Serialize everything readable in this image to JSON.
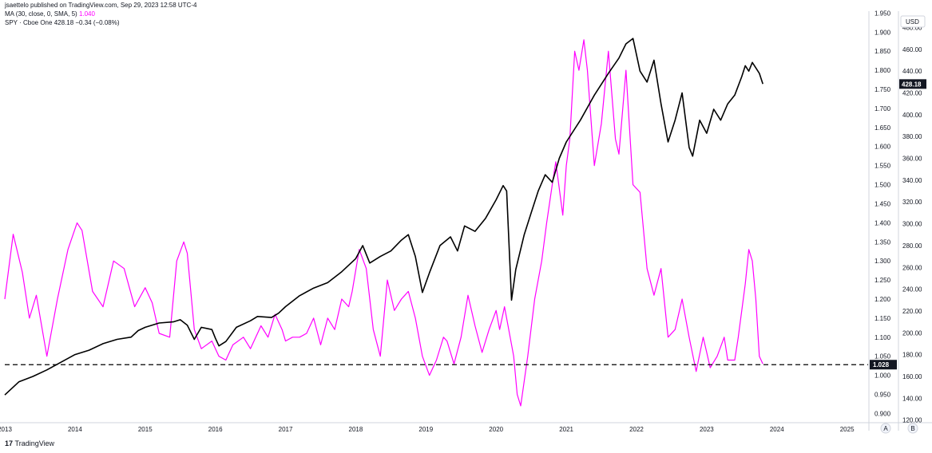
{
  "publisher_line": "jsaettelo published on TradingView.com, Sep 29, 2023 12:58 UTC-4",
  "legend": [
    {
      "label": "MA (30, close, 0, SMA, 5)",
      "value": "1.040",
      "color": "#ff00ff"
    },
    {
      "label": "SPY · Cboe One",
      "value": "428.18  −0.34 (−0.08%)",
      "color": "#131722"
    }
  ],
  "brand": {
    "mark": "17",
    "name": "TradingView",
    "icon": "tradingview-logo-icon"
  },
  "axis_buttons": {
    "auto": "A",
    "log": "B"
  },
  "colors": {
    "ratio_line": "#ff00ff",
    "price_line": "#000000",
    "grid": "#e8e8e8",
    "text": "#131722",
    "label_bg": "#131722"
  },
  "chart_data": {
    "type": "line",
    "x": {
      "labels": [
        "2013",
        "2014",
        "2015",
        "2016",
        "2017",
        "2018",
        "2019",
        "2020",
        "2021",
        "2022",
        "2023",
        "2024",
        "2025"
      ],
      "range": [
        2013.0,
        2025.3
      ]
    },
    "y_left_scale": {
      "name": "MA ratio",
      "ticks": [
        "1.950",
        "1.900",
        "1.850",
        "1.800",
        "1.750",
        "1.700",
        "1.650",
        "1.600",
        "1.550",
        "1.500",
        "1.450",
        "1.400",
        "1.350",
        "1.300",
        "1.250",
        "1.200",
        "1.150",
        "1.100",
        "1.050",
        "1.000",
        "0.950",
        "0.900"
      ],
      "range": [
        0.88,
        1.955
      ]
    },
    "y_right_scale": {
      "name": "USD",
      "unit": "USD",
      "ticks": [
        "480.00",
        "460.00",
        "440.00",
        "420.00",
        "400.00",
        "380.00",
        "360.00",
        "340.00",
        "320.00",
        "300.00",
        "280.00",
        "260.00",
        "240.00",
        "220.00",
        "200.00",
        "180.00",
        "160.00",
        "140.00",
        "120.00"
      ],
      "range": [
        119,
        495
      ]
    },
    "reference_line": {
      "value": 1.028,
      "label": "1.028",
      "style": "dashed"
    },
    "last_price_label": {
      "value": 428.18,
      "label": "428.18"
    },
    "series": [
      {
        "name": "MA (30, close, 0, SMA, 5)",
        "color": "#ff00ff",
        "scale": "left",
        "points": [
          [
            2013.0,
            1.2
          ],
          [
            2013.12,
            1.37
          ],
          [
            2013.25,
            1.27
          ],
          [
            2013.35,
            1.15
          ],
          [
            2013.45,
            1.21
          ],
          [
            2013.6,
            1.05
          ],
          [
            2013.75,
            1.2
          ],
          [
            2013.9,
            1.33
          ],
          [
            2014.03,
            1.4
          ],
          [
            2014.1,
            1.38
          ],
          [
            2014.25,
            1.22
          ],
          [
            2014.4,
            1.18
          ],
          [
            2014.55,
            1.3
          ],
          [
            2014.7,
            1.28
          ],
          [
            2014.85,
            1.18
          ],
          [
            2015.0,
            1.23
          ],
          [
            2015.1,
            1.19
          ],
          [
            2015.2,
            1.11
          ],
          [
            2015.35,
            1.1
          ],
          [
            2015.45,
            1.3
          ],
          [
            2015.55,
            1.35
          ],
          [
            2015.6,
            1.32
          ],
          [
            2015.7,
            1.12
          ],
          [
            2015.8,
            1.07
          ],
          [
            2015.95,
            1.09
          ],
          [
            2016.05,
            1.05
          ],
          [
            2016.15,
            1.04
          ],
          [
            2016.25,
            1.08
          ],
          [
            2016.4,
            1.1
          ],
          [
            2016.5,
            1.07
          ],
          [
            2016.65,
            1.13
          ],
          [
            2016.75,
            1.1
          ],
          [
            2016.85,
            1.16
          ],
          [
            2016.95,
            1.12
          ],
          [
            2017.0,
            1.09
          ],
          [
            2017.1,
            1.1
          ],
          [
            2017.2,
            1.1
          ],
          [
            2017.3,
            1.11
          ],
          [
            2017.4,
            1.15
          ],
          [
            2017.5,
            1.08
          ],
          [
            2017.6,
            1.15
          ],
          [
            2017.7,
            1.12
          ],
          [
            2017.8,
            1.2
          ],
          [
            2017.9,
            1.18
          ],
          [
            2017.95,
            1.22
          ],
          [
            2018.05,
            1.33
          ],
          [
            2018.15,
            1.28
          ],
          [
            2018.25,
            1.12
          ],
          [
            2018.35,
            1.05
          ],
          [
            2018.45,
            1.25
          ],
          [
            2018.55,
            1.17
          ],
          [
            2018.65,
            1.2
          ],
          [
            2018.75,
            1.22
          ],
          [
            2018.85,
            1.15
          ],
          [
            2018.95,
            1.05
          ],
          [
            2019.05,
            1.0
          ],
          [
            2019.15,
            1.04
          ],
          [
            2019.25,
            1.1
          ],
          [
            2019.3,
            1.09
          ],
          [
            2019.4,
            1.03
          ],
          [
            2019.5,
            1.1
          ],
          [
            2019.6,
            1.21
          ],
          [
            2019.7,
            1.13
          ],
          [
            2019.8,
            1.06
          ],
          [
            2019.9,
            1.12
          ],
          [
            2020.0,
            1.17
          ],
          [
            2020.05,
            1.12
          ],
          [
            2020.12,
            1.18
          ],
          [
            2020.2,
            1.1
          ],
          [
            2020.25,
            1.05
          ],
          [
            2020.3,
            0.95
          ],
          [
            2020.35,
            0.92
          ],
          [
            2020.45,
            1.05
          ],
          [
            2020.55,
            1.2
          ],
          [
            2020.65,
            1.3
          ],
          [
            2020.72,
            1.4
          ],
          [
            2020.8,
            1.5
          ],
          [
            2020.85,
            1.56
          ],
          [
            2020.95,
            1.42
          ],
          [
            2021.0,
            1.55
          ],
          [
            2021.05,
            1.62
          ],
          [
            2021.12,
            1.85
          ],
          [
            2021.18,
            1.8
          ],
          [
            2021.25,
            1.88
          ],
          [
            2021.3,
            1.8
          ],
          [
            2021.4,
            1.55
          ],
          [
            2021.5,
            1.66
          ],
          [
            2021.6,
            1.85
          ],
          [
            2021.7,
            1.62
          ],
          [
            2021.75,
            1.58
          ],
          [
            2021.85,
            1.8
          ],
          [
            2021.95,
            1.5
          ],
          [
            2022.05,
            1.48
          ],
          [
            2022.15,
            1.28
          ],
          [
            2022.25,
            1.21
          ],
          [
            2022.35,
            1.28
          ],
          [
            2022.45,
            1.1
          ],
          [
            2022.55,
            1.12
          ],
          [
            2022.65,
            1.2
          ],
          [
            2022.75,
            1.1
          ],
          [
            2022.85,
            1.01
          ],
          [
            2022.95,
            1.1
          ],
          [
            2023.05,
            1.02
          ],
          [
            2023.15,
            1.05
          ],
          [
            2023.25,
            1.1
          ],
          [
            2023.3,
            1.04
          ],
          [
            2023.4,
            1.04
          ],
          [
            2023.45,
            1.1
          ],
          [
            2023.55,
            1.24
          ],
          [
            2023.6,
            1.33
          ],
          [
            2023.65,
            1.3
          ],
          [
            2023.7,
            1.2
          ],
          [
            2023.75,
            1.05
          ],
          [
            2023.8,
            1.03
          ]
        ]
      },
      {
        "name": "SPY · Cboe One",
        "color": "#000000",
        "scale": "right",
        "points": [
          [
            2013.0,
            143
          ],
          [
            2013.2,
            155
          ],
          [
            2013.4,
            160
          ],
          [
            2013.6,
            166
          ],
          [
            2013.8,
            173
          ],
          [
            2014.0,
            180
          ],
          [
            2014.2,
            184
          ],
          [
            2014.4,
            190
          ],
          [
            2014.6,
            194
          ],
          [
            2014.8,
            196
          ],
          [
            2014.9,
            202
          ],
          [
            2015.0,
            205
          ],
          [
            2015.2,
            209
          ],
          [
            2015.4,
            210
          ],
          [
            2015.5,
            212
          ],
          [
            2015.6,
            207
          ],
          [
            2015.7,
            194
          ],
          [
            2015.8,
            205
          ],
          [
            2015.95,
            203
          ],
          [
            2016.0,
            195
          ],
          [
            2016.05,
            188
          ],
          [
            2016.15,
            192
          ],
          [
            2016.3,
            205
          ],
          [
            2016.5,
            211
          ],
          [
            2016.6,
            215
          ],
          [
            2016.8,
            214
          ],
          [
            2016.9,
            218
          ],
          [
            2017.0,
            224
          ],
          [
            2017.2,
            234
          ],
          [
            2017.4,
            241
          ],
          [
            2017.6,
            246
          ],
          [
            2017.8,
            256
          ],
          [
            2018.0,
            268
          ],
          [
            2018.1,
            280
          ],
          [
            2018.2,
            264
          ],
          [
            2018.35,
            270
          ],
          [
            2018.5,
            275
          ],
          [
            2018.65,
            285
          ],
          [
            2018.75,
            290
          ],
          [
            2018.85,
            270
          ],
          [
            2018.95,
            237
          ],
          [
            2019.05,
            255
          ],
          [
            2019.2,
            280
          ],
          [
            2019.35,
            288
          ],
          [
            2019.45,
            275
          ],
          [
            2019.55,
            298
          ],
          [
            2019.7,
            293
          ],
          [
            2019.85,
            305
          ],
          [
            2020.0,
            322
          ],
          [
            2020.1,
            335
          ],
          [
            2020.15,
            330
          ],
          [
            2020.22,
            230
          ],
          [
            2020.28,
            258
          ],
          [
            2020.4,
            290
          ],
          [
            2020.5,
            310
          ],
          [
            2020.6,
            330
          ],
          [
            2020.7,
            345
          ],
          [
            2020.8,
            338
          ],
          [
            2020.9,
            360
          ],
          [
            2021.0,
            375
          ],
          [
            2021.2,
            395
          ],
          [
            2021.4,
            418
          ],
          [
            2021.6,
            438
          ],
          [
            2021.75,
            452
          ],
          [
            2021.85,
            465
          ],
          [
            2021.95,
            470
          ],
          [
            2022.05,
            440
          ],
          [
            2022.15,
            430
          ],
          [
            2022.25,
            450
          ],
          [
            2022.35,
            410
          ],
          [
            2022.45,
            375
          ],
          [
            2022.55,
            395
          ],
          [
            2022.65,
            420
          ],
          [
            2022.75,
            370
          ],
          [
            2022.8,
            362
          ],
          [
            2022.9,
            395
          ],
          [
            2023.0,
            383
          ],
          [
            2023.1,
            405
          ],
          [
            2023.2,
            395
          ],
          [
            2023.3,
            410
          ],
          [
            2023.4,
            418
          ],
          [
            2023.5,
            435
          ],
          [
            2023.55,
            445
          ],
          [
            2023.6,
            440
          ],
          [
            2023.65,
            448
          ],
          [
            2023.7,
            443
          ],
          [
            2023.75,
            438
          ],
          [
            2023.8,
            428.18
          ]
        ]
      }
    ]
  }
}
